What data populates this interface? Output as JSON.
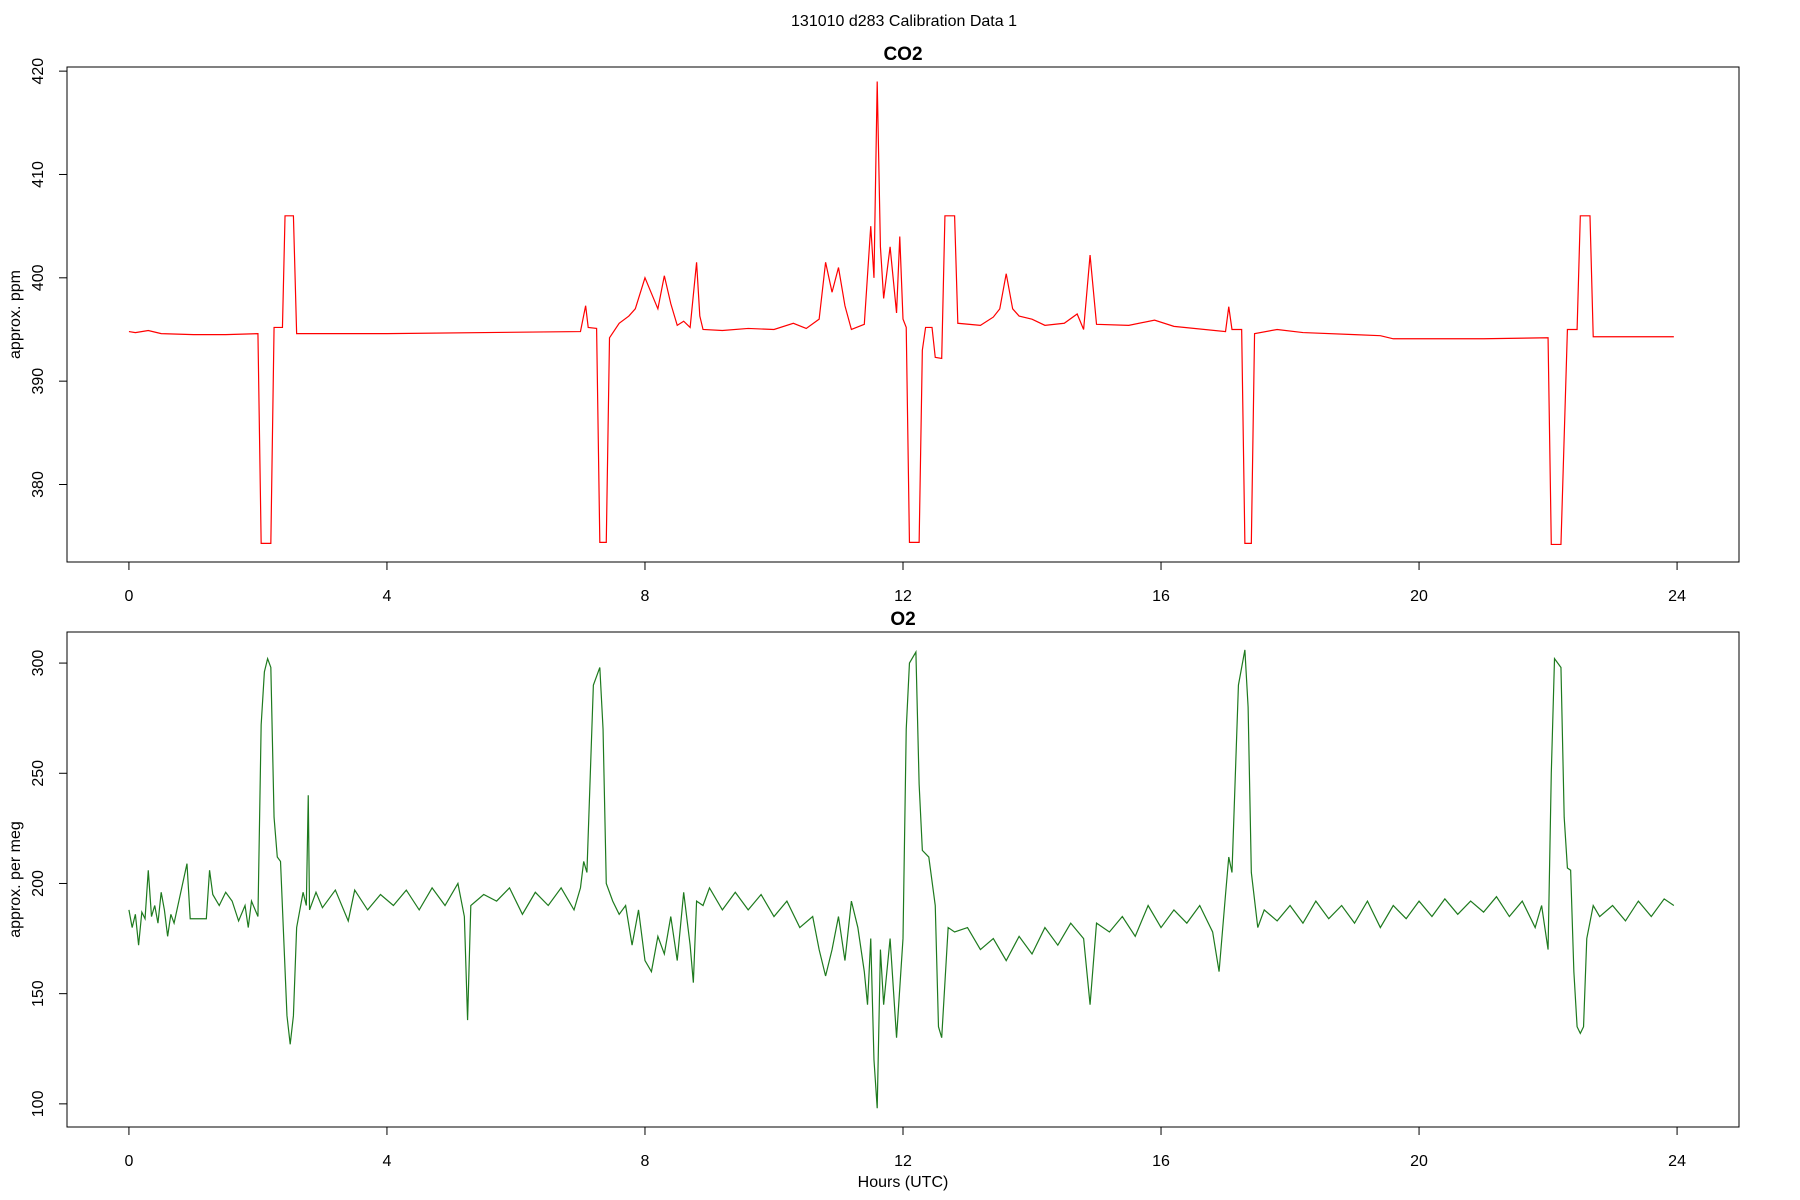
{
  "title": "131010   d283   Calibration Data 1",
  "chart_data": [
    {
      "type": "line",
      "title": "CO2",
      "ylabel": "approx. ppm",
      "color": "#ff0000",
      "xlim": [
        -0.96,
        24.96
      ],
      "xticks": [
        0,
        4,
        8,
        12,
        16,
        20,
        24
      ],
      "ylim": [
        372.5,
        420.4
      ],
      "yticks": [
        380,
        390,
        400,
        410,
        420
      ],
      "x": [
        0,
        0.1,
        0.3,
        0.5,
        1.0,
        1.5,
        2.0,
        2.05,
        2.2,
        2.25,
        2.38,
        2.42,
        2.55,
        2.6,
        4,
        7.0,
        7.08,
        7.12,
        7.25,
        7.3,
        7.4,
        7.45,
        7.6,
        7.75,
        7.85,
        8.0,
        8.1,
        8.2,
        8.3,
        8.4,
        8.5,
        8.6,
        8.7,
        8.8,
        8.85,
        8.9,
        9.2,
        9.6,
        10.0,
        10.3,
        10.5,
        10.7,
        10.8,
        10.9,
        11.0,
        11.1,
        11.2,
        11.4,
        11.5,
        11.55,
        11.6,
        11.65,
        11.7,
        11.8,
        11.9,
        11.95,
        12.0,
        12.05,
        12.1,
        12.25,
        12.3,
        12.35,
        12.45,
        12.5,
        12.6,
        12.65,
        12.8,
        12.85,
        13.2,
        13.4,
        13.5,
        13.6,
        13.7,
        13.8,
        14.0,
        14.2,
        14.5,
        14.7,
        14.8,
        14.9,
        15.0,
        15.5,
        15.9,
        16.2,
        17.0,
        17.05,
        17.1,
        17.25,
        17.3,
        17.4,
        17.45,
        17.8,
        18.2,
        19.0,
        19.4,
        19.6,
        20,
        21,
        22.0,
        22.05,
        22.2,
        22.3,
        22.45,
        22.5,
        22.65,
        22.7,
        23.95
      ],
      "values": [
        394.8,
        394.7,
        394.9,
        394.6,
        394.5,
        394.5,
        394.6,
        374.3,
        374.3,
        395.2,
        395.2,
        406,
        406,
        394.6,
        394.6,
        394.8,
        397.3,
        395.2,
        395.1,
        374.4,
        374.4,
        394.2,
        395.6,
        396.3,
        397,
        400,
        398.5,
        397,
        400.2,
        397.5,
        395.4,
        395.8,
        395.2,
        401.5,
        396.3,
        395,
        394.9,
        395.1,
        395,
        395.6,
        395.1,
        396,
        401.5,
        398.6,
        401,
        397.3,
        395,
        395.5,
        405,
        400,
        419,
        403,
        398,
        403,
        396.6,
        404,
        396,
        395.2,
        374.4,
        374.4,
        393,
        395.2,
        395.2,
        392.3,
        392.2,
        406,
        406,
        395.6,
        395.4,
        396.2,
        397,
        400.4,
        397,
        396.3,
        396,
        395.4,
        395.6,
        396.5,
        395,
        402.2,
        395.5,
        395.4,
        395.9,
        395.3,
        394.8,
        397.2,
        395,
        395,
        374.3,
        374.3,
        394.6,
        395,
        394.7,
        394.5,
        394.4,
        394.1,
        394.1,
        394.1,
        394.2,
        374.2,
        374.2,
        395,
        395,
        406,
        406,
        394.3,
        394.3
      ]
    },
    {
      "type": "line",
      "title": "O2",
      "ylabel": "approx. per meg",
      "xlabel": "Hours (UTC)",
      "color": "#1e7a1e",
      "xlim": [
        -0.96,
        24.96
      ],
      "xticks": [
        0,
        4,
        8,
        12,
        16,
        20,
        24
      ],
      "ylim": [
        89.5,
        314.1
      ],
      "yticks": [
        100,
        150,
        200,
        250,
        300
      ],
      "x": [
        0,
        0.05,
        0.1,
        0.15,
        0.2,
        0.25,
        0.3,
        0.35,
        0.4,
        0.45,
        0.5,
        0.55,
        0.6,
        0.65,
        0.7,
        0.9,
        0.95,
        1.2,
        1.25,
        1.3,
        1.4,
        1.5,
        1.6,
        1.7,
        1.8,
        1.85,
        1.9,
        2.0,
        2.05,
        2.1,
        2.15,
        2.2,
        2.25,
        2.3,
        2.35,
        2.4,
        2.45,
        2.5,
        2.55,
        2.6,
        2.7,
        2.75,
        2.78,
        2.8,
        2.9,
        3.0,
        3.2,
        3.4,
        3.5,
        3.7,
        3.9,
        4.1,
        4.3,
        4.5,
        4.7,
        4.9,
        5.1,
        5.2,
        5.25,
        5.3,
        5.5,
        5.7,
        5.9,
        6.1,
        6.3,
        6.5,
        6.7,
        6.9,
        7.0,
        7.05,
        7.1,
        7.2,
        7.3,
        7.35,
        7.4,
        7.5,
        7.6,
        7.7,
        7.8,
        7.9,
        8.0,
        8.1,
        8.2,
        8.3,
        8.4,
        8.5,
        8.6,
        8.7,
        8.75,
        8.8,
        8.9,
        9.0,
        9.2,
        9.4,
        9.6,
        9.8,
        10.0,
        10.2,
        10.4,
        10.6,
        10.7,
        10.8,
        10.9,
        11.0,
        11.1,
        11.2,
        11.3,
        11.4,
        11.45,
        11.5,
        11.55,
        11.6,
        11.65,
        11.7,
        11.8,
        11.9,
        12.0,
        12.05,
        12.1,
        12.2,
        12.25,
        12.3,
        12.4,
        12.5,
        12.55,
        12.6,
        12.7,
        12.8,
        13.0,
        13.2,
        13.4,
        13.6,
        13.8,
        14.0,
        14.2,
        14.4,
        14.6,
        14.8,
        14.9,
        15.0,
        15.2,
        15.4,
        15.6,
        15.8,
        16.0,
        16.2,
        16.4,
        16.6,
        16.8,
        16.9,
        17.0,
        17.05,
        17.1,
        17.2,
        17.3,
        17.35,
        17.4,
        17.5,
        17.6,
        17.8,
        18.0,
        18.2,
        18.4,
        18.6,
        18.8,
        19.0,
        19.2,
        19.4,
        19.6,
        19.8,
        20.0,
        20.2,
        20.4,
        20.6,
        20.8,
        21.0,
        21.2,
        21.4,
        21.6,
        21.8,
        21.9,
        22.0,
        22.05,
        22.1,
        22.2,
        22.25,
        22.3,
        22.35,
        22.4,
        22.45,
        22.5,
        22.55,
        22.6,
        22.7,
        22.8,
        23.0,
        23.2,
        23.4,
        23.6,
        23.8,
        23.95
      ],
      "values": [
        188,
        180,
        186,
        172,
        187,
        184,
        206,
        185,
        190,
        182,
        196,
        188,
        176,
        186,
        182,
        209,
        184,
        184,
        206,
        195,
        190,
        196,
        192,
        183,
        190,
        180,
        192,
        185,
        272,
        296,
        302,
        298,
        230,
        212,
        210,
        175,
        140,
        127,
        140,
        180,
        196,
        190,
        240,
        188,
        196,
        189,
        197,
        183,
        197,
        188,
        195,
        190,
        197,
        188,
        198,
        190,
        200,
        185,
        138,
        190,
        195,
        192,
        198,
        186,
        196,
        190,
        198,
        188,
        198,
        210,
        205,
        290,
        298,
        270,
        200,
        192,
        186,
        190,
        172,
        188,
        165,
        160,
        176,
        168,
        185,
        165,
        196,
        172,
        155,
        192,
        190,
        198,
        188,
        196,
        188,
        195,
        185,
        192,
        180,
        185,
        170,
        158,
        170,
        185,
        165,
        192,
        180,
        160,
        145,
        175,
        120,
        98,
        170,
        145,
        175,
        130,
        175,
        270,
        300,
        305,
        245,
        215,
        212,
        190,
        135,
        130,
        180,
        178,
        180,
        170,
        175,
        165,
        176,
        168,
        180,
        172,
        182,
        175,
        145,
        182,
        178,
        185,
        176,
        190,
        180,
        188,
        182,
        190,
        178,
        160,
        195,
        212,
        205,
        290,
        306,
        280,
        205,
        180,
        188,
        183,
        190,
        182,
        192,
        184,
        190,
        182,
        192,
        180,
        190,
        184,
        192,
        185,
        193,
        186,
        192,
        187,
        194,
        185,
        192,
        180,
        190,
        170,
        250,
        302,
        298,
        230,
        207,
        206,
        160,
        135,
        132,
        135,
        175,
        190,
        185,
        190,
        183,
        192,
        185,
        193,
        190
      ]
    }
  ]
}
